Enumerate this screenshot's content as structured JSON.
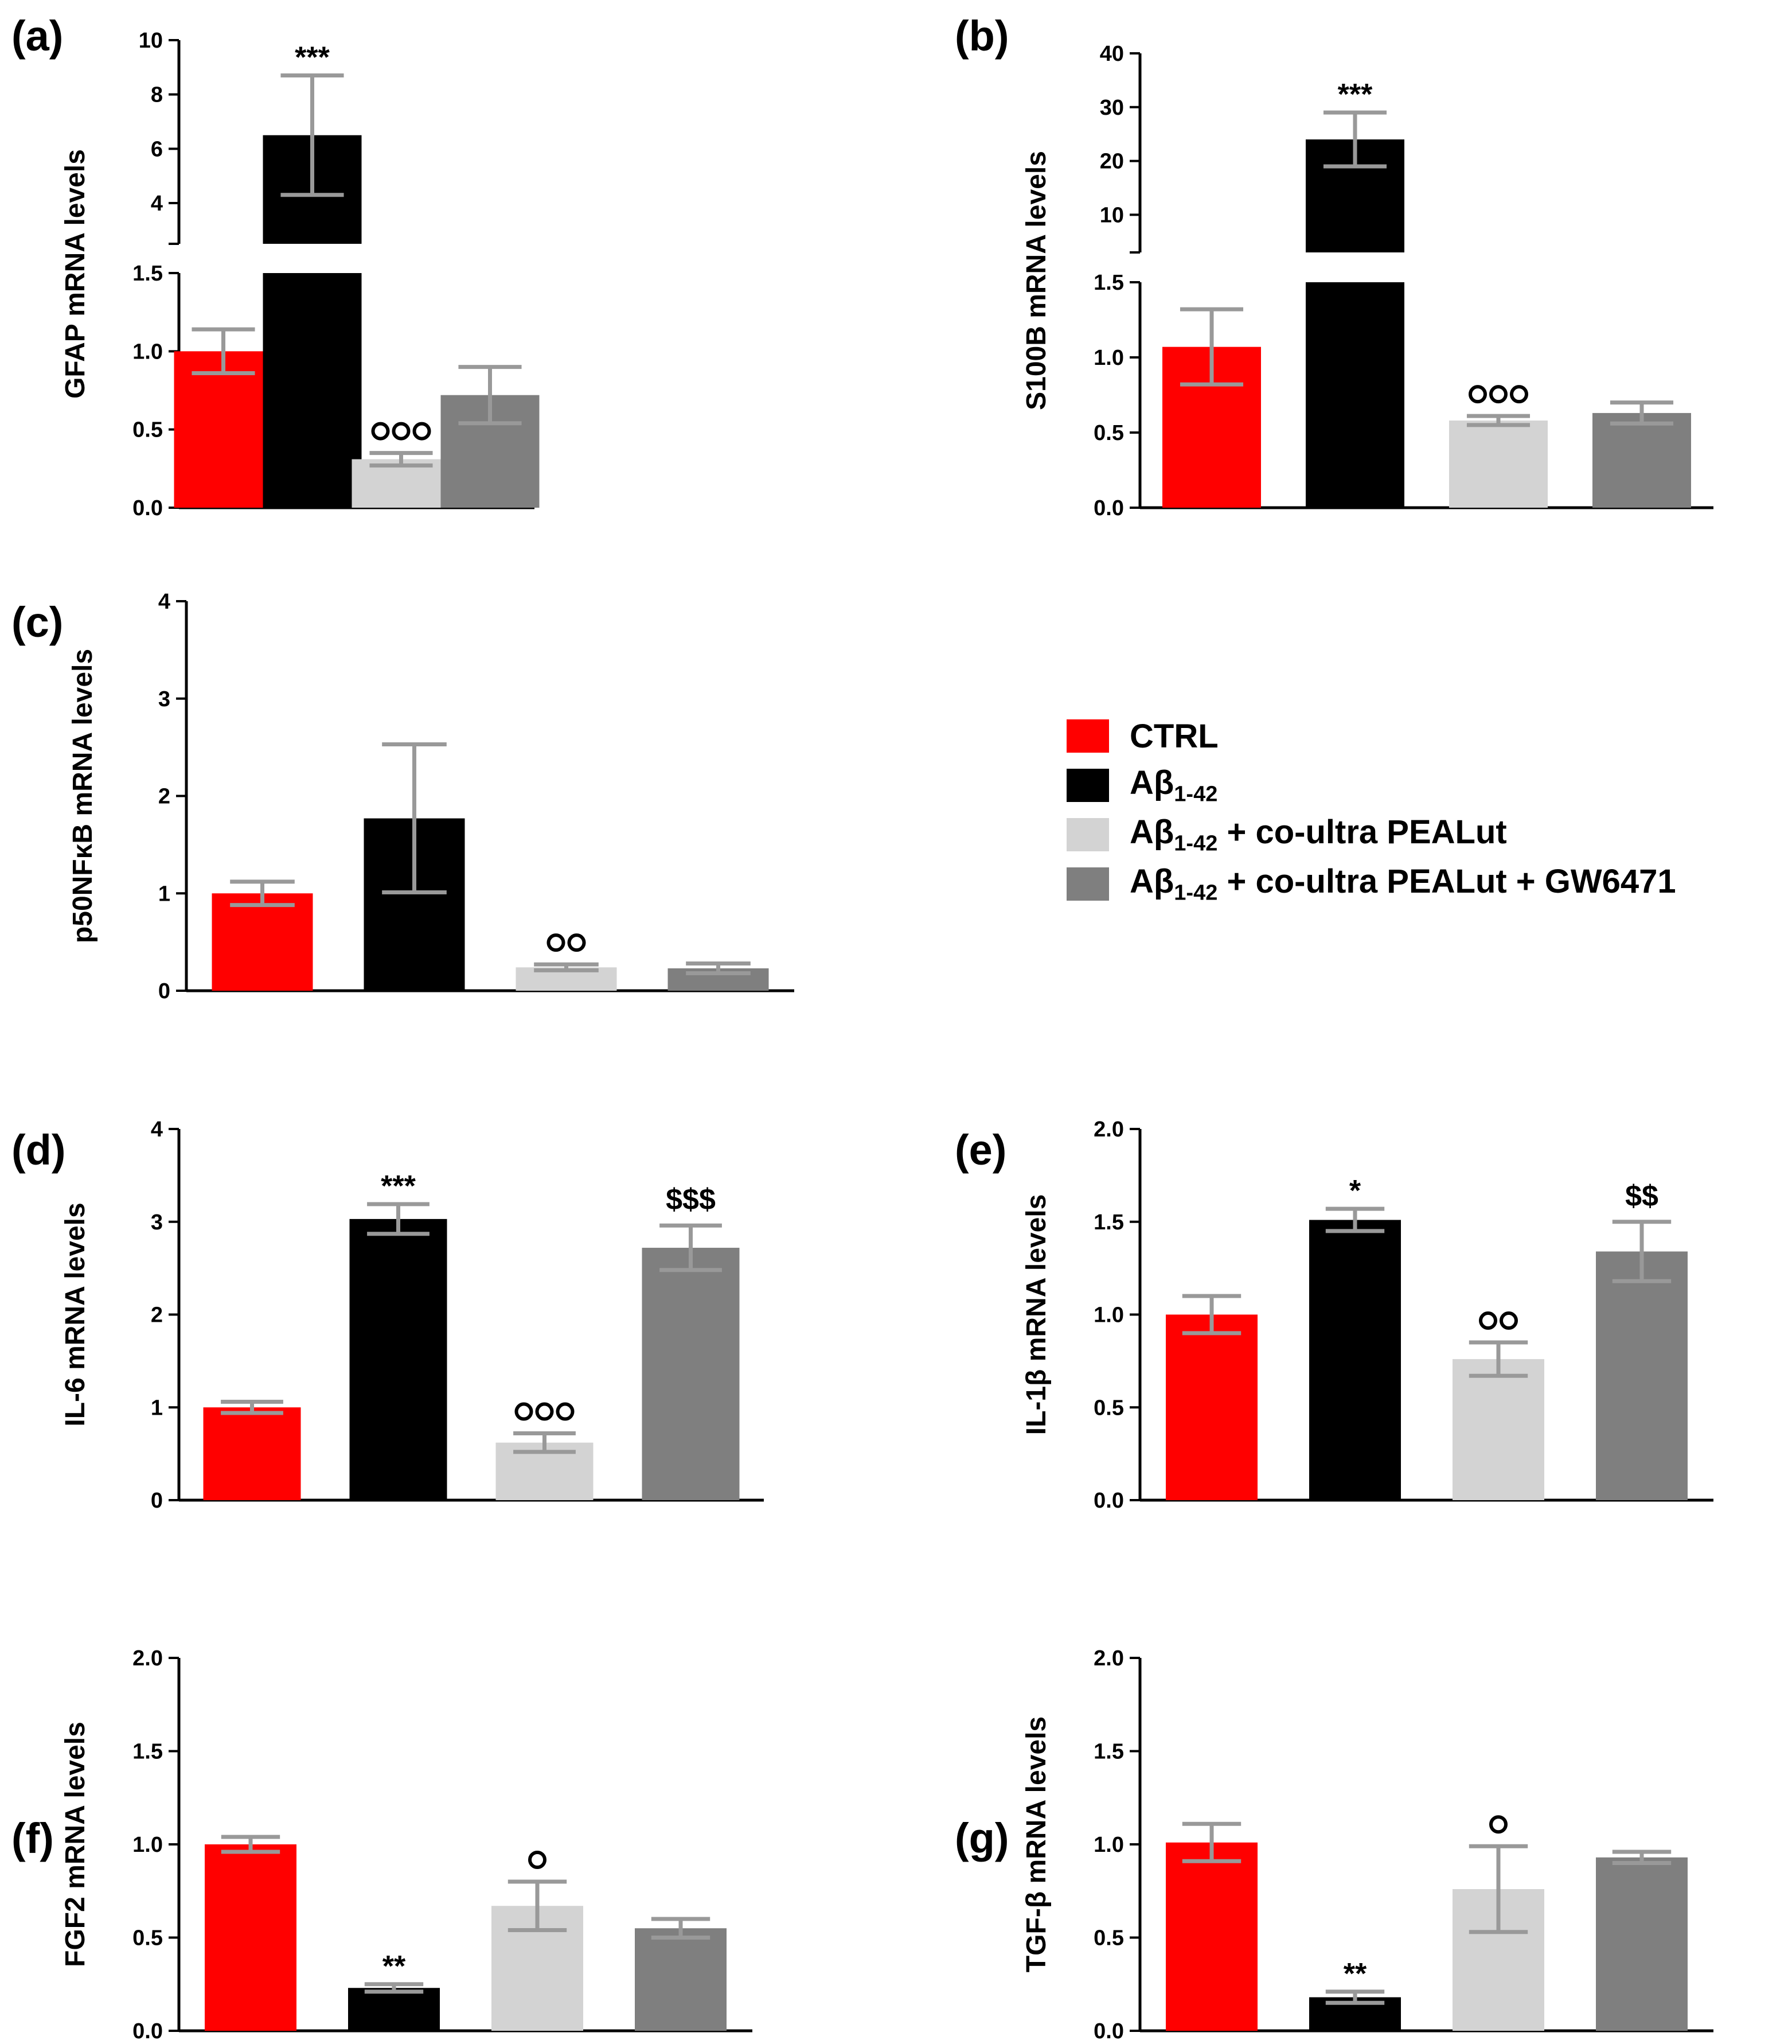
{
  "legend": {
    "items": [
      {
        "series": "ctrl",
        "prefix": "CTRL",
        "sub": "",
        "suffix": "",
        "color": "#ff0000"
      },
      {
        "series": "ab",
        "prefix": "Aβ",
        "sub": "1-42",
        "suffix": "",
        "color": "#000000"
      },
      {
        "series": "ab_pealut",
        "prefix": "Aβ",
        "sub": "1-42",
        "suffix": " + co-ultra PEALut",
        "color": "#d3d3d3"
      },
      {
        "series": "ab_pealut_gw",
        "prefix": "Aβ",
        "sub": "1-42",
        "suffix": " + co-ultra PEALut + GW6471",
        "color": "#7f7f7f"
      }
    ]
  },
  "chart_data": [
    {
      "id": "a",
      "label": "(a)",
      "type": "bar",
      "ylabel": "GFAP mRNA levels",
      "categories": [
        "CTRL",
        "Aβ1-42",
        "Aβ1-42 + co-ultra PEALut",
        "Aβ1-42 + co-ultra PEALut + GW6471"
      ],
      "colors": [
        "#ff0000",
        "#000000",
        "#d3d3d3",
        "#7f7f7f"
      ],
      "values": [
        1.0,
        6.5,
        0.31,
        0.72
      ],
      "errors": [
        0.14,
        2.2,
        0.04,
        0.18
      ],
      "annotations": [
        "",
        "***",
        "ooo",
        ""
      ],
      "axis_break": true,
      "ylim": [
        0,
        1.5
      ],
      "yticks": [
        "0.0",
        "0.5",
        "1.0",
        "1.5"
      ],
      "upper_ylim": [
        2.5,
        10
      ],
      "upper_yticks": [
        "4",
        "6",
        "8",
        "10"
      ]
    },
    {
      "id": "b",
      "label": "(b)",
      "type": "bar",
      "ylabel": "S100B mRNA levels",
      "categories": [
        "CTRL",
        "Aβ1-42",
        "Aβ1-42 + co-ultra PEALut",
        "Aβ1-42 + co-ultra PEALut + GW6471"
      ],
      "colors": [
        "#ff0000",
        "#000000",
        "#d3d3d3",
        "#7f7f7f"
      ],
      "values": [
        1.07,
        24,
        0.58,
        0.63
      ],
      "errors": [
        0.25,
        5,
        0.03,
        0.07
      ],
      "annotations": [
        "",
        "***",
        "ooo",
        ""
      ],
      "axis_break": true,
      "ylim": [
        0,
        1.5
      ],
      "yticks": [
        "0.0",
        "0.5",
        "1.0",
        "1.5"
      ],
      "upper_ylim": [
        3,
        40
      ],
      "upper_yticks": [
        "10",
        "20",
        "30",
        "40"
      ]
    },
    {
      "id": "c",
      "label": "(c)",
      "type": "bar",
      "ylabel": "p50NFκB mRNA levels",
      "categories": [
        "CTRL",
        "Aβ1-42",
        "Aβ1-42 + co-ultra PEALut",
        "Aβ1-42 + co-ultra PEALut + GW6471"
      ],
      "colors": [
        "#ff0000",
        "#000000",
        "#d3d3d3",
        "#7f7f7f"
      ],
      "values": [
        1.0,
        1.77,
        0.24,
        0.23
      ],
      "errors": [
        0.12,
        0.76,
        0.03,
        0.05
      ],
      "annotations": [
        "",
        "",
        "oo",
        ""
      ],
      "axis_break": false,
      "ylim": [
        0,
        4
      ],
      "yticks": [
        "0",
        "1",
        "2",
        "3",
        "4"
      ]
    },
    {
      "id": "d",
      "label": "(d)",
      "type": "bar",
      "ylabel": "IL-6 mRNA levels",
      "categories": [
        "CTRL",
        "Aβ1-42",
        "Aβ1-42 + co-ultra PEALut",
        "Aβ1-42 + co-ultra PEALut + GW6471"
      ],
      "colors": [
        "#ff0000",
        "#000000",
        "#d3d3d3",
        "#7f7f7f"
      ],
      "values": [
        1.0,
        3.03,
        0.62,
        2.72
      ],
      "errors": [
        0.06,
        0.16,
        0.1,
        0.24
      ],
      "annotations": [
        "",
        "***",
        "ooo",
        "$$$"
      ],
      "axis_break": false,
      "ylim": [
        0,
        4
      ],
      "yticks": [
        "0",
        "1",
        "2",
        "3",
        "4"
      ]
    },
    {
      "id": "e",
      "label": "(e)",
      "type": "bar",
      "ylabel": "IL-1β mRNA levels",
      "categories": [
        "CTRL",
        "Aβ1-42",
        "Aβ1-42 + co-ultra PEALut",
        "Aβ1-42 + co-ultra PEALut + GW6471"
      ],
      "colors": [
        "#ff0000",
        "#000000",
        "#d3d3d3",
        "#7f7f7f"
      ],
      "values": [
        1.0,
        1.51,
        0.76,
        1.34
      ],
      "errors": [
        0.1,
        0.06,
        0.09,
        0.16
      ],
      "annotations": [
        "",
        "*",
        "oo",
        "$$"
      ],
      "axis_break": false,
      "ylim": [
        0,
        2
      ],
      "yticks": [
        "0.0",
        "0.5",
        "1.0",
        "1.5",
        "2.0"
      ]
    },
    {
      "id": "f",
      "label": "(f)",
      "type": "bar",
      "ylabel": "FGF2 mRNA levels",
      "categories": [
        "CTRL",
        "Aβ1-42",
        "Aβ1-42 + co-ultra PEALut",
        "Aβ1-42 + co-ultra PEALut + GW6471"
      ],
      "colors": [
        "#ff0000",
        "#000000",
        "#d3d3d3",
        "#7f7f7f"
      ],
      "values": [
        1.0,
        0.23,
        0.67,
        0.55
      ],
      "errors": [
        0.04,
        0.02,
        0.13,
        0.05
      ],
      "annotations": [
        "",
        "**",
        "o",
        ""
      ],
      "axis_break": false,
      "ylim": [
        0,
        2
      ],
      "yticks": [
        "0.0",
        "0.5",
        "1.0",
        "1.5",
        "2.0"
      ]
    },
    {
      "id": "g",
      "label": "(g)",
      "type": "bar",
      "ylabel": "TGF-β mRNA levels",
      "categories": [
        "CTRL",
        "Aβ1-42",
        "Aβ1-42 + co-ultra PEALut",
        "Aβ1-42 + co-ultra PEALut + GW6471"
      ],
      "colors": [
        "#ff0000",
        "#000000",
        "#d3d3d3",
        "#7f7f7f"
      ],
      "values": [
        1.01,
        0.18,
        0.76,
        0.93
      ],
      "errors": [
        0.1,
        0.03,
        0.23,
        0.03
      ],
      "annotations": [
        "",
        "**",
        "o",
        ""
      ],
      "axis_break": false,
      "ylim": [
        0,
        2
      ],
      "yticks": [
        "0.0",
        "0.5",
        "1.0",
        "1.5",
        "2.0"
      ]
    }
  ]
}
